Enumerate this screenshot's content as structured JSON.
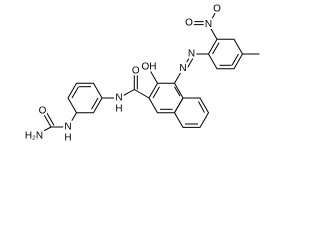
{
  "atoms": {
    "urea_amine": "H₂N",
    "urea_oxygen": "O",
    "urea_nitrogen": "N",
    "urea_hydrogen": "H",
    "amide_nitrogen": "N",
    "amide_hydrogen": "H",
    "amide_oxygen": "O",
    "hydroxy": "OH",
    "azo_nitrogen_1": "N",
    "azo_nitrogen_2": "N",
    "nitro_nitrogen": "N",
    "nitro_oxygen_1": "O",
    "nitro_oxygen_2": "O"
  }
}
